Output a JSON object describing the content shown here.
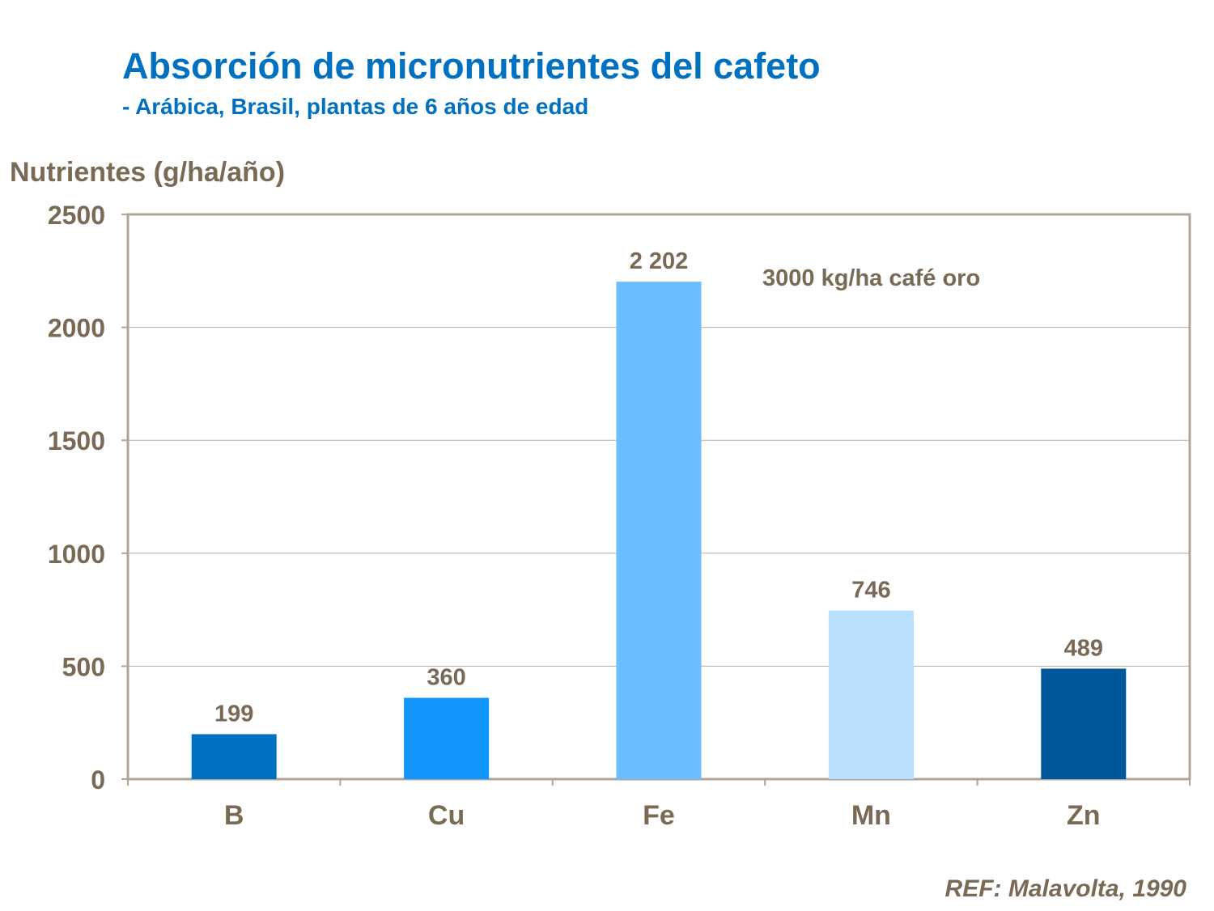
{
  "chart_data": {
    "type": "bar",
    "title": "Absorción de micronutrientes del cafeto",
    "subtitle": "- Arábica, Brasil, plantas de 6 años de edad",
    "ylabel": "Nutrientes (g/ha/año)",
    "xlabel": "",
    "categories": [
      "B",
      "Cu",
      "Fe",
      "Mn",
      "Zn"
    ],
    "values": [
      199,
      360,
      2202,
      746,
      489
    ],
    "data_labels": [
      "199",
      "360",
      "2 202",
      "746",
      "489"
    ],
    "colors": [
      "#0070C0",
      "#1196FF",
      "#6ABEFF",
      "#B9DFFF",
      "#00589C"
    ],
    "ylim": [
      0,
      2500
    ],
    "yticks": [
      0,
      500,
      1000,
      1500,
      2000,
      2500
    ],
    "grid": true,
    "annotation": "3000 kg/ha café oro",
    "reference": "REF: Malavolta, 1990"
  }
}
